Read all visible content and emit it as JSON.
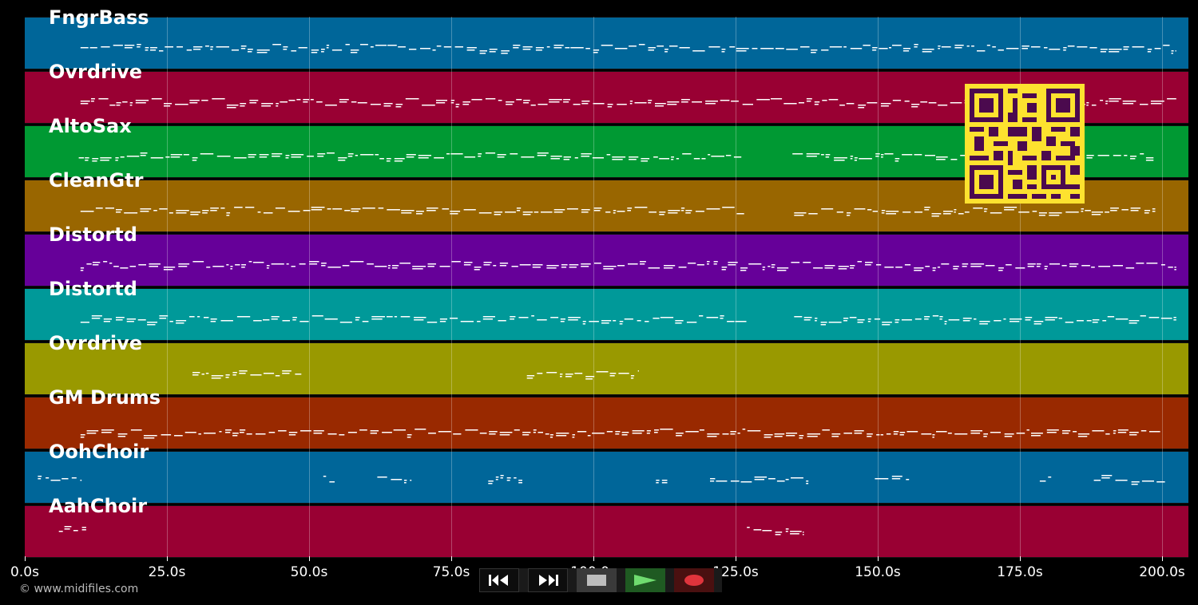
{
  "colors": {
    "background": "#000000",
    "note": "#ffffff",
    "qr_fg": "#4b0a4e",
    "qr_bg": "#fde22f"
  },
  "tracks": [
    {
      "name": "FngrBass",
      "color": "#006699"
    },
    {
      "name": "Ovrdrive",
      "color": "#990033"
    },
    {
      "name": "AltoSax",
      "color": "#009933"
    },
    {
      "name": "CleanGtr",
      "color": "#996600"
    },
    {
      "name": "Distortd",
      "color": "#660099"
    },
    {
      "name": "Distortd",
      "color": "#009999"
    },
    {
      "name": "Ovrdrive",
      "color": "#999900"
    },
    {
      "name": "GM Drums",
      "color": "#992900"
    },
    {
      "name": "OohChoir",
      "color": "#006699"
    },
    {
      "name": "AahChoir",
      "color": "#990033"
    }
  ],
  "timeline": {
    "range_seconds": [
      0,
      204.5
    ],
    "ticks": [
      {
        "value": 0,
        "label": "0.0s"
      },
      {
        "value": 25,
        "label": "25.0s"
      },
      {
        "value": 50,
        "label": "50.0s"
      },
      {
        "value": 75,
        "label": "75.0s"
      },
      {
        "value": 100,
        "label": "100.0s"
      },
      {
        "value": 125,
        "label": "125.0s"
      },
      {
        "value": 150,
        "label": "150.0s"
      },
      {
        "value": 175,
        "label": "175.0s"
      },
      {
        "value": 200,
        "label": "200.0s"
      }
    ]
  },
  "note_segments": [
    {
      "track": 0,
      "start": 9.8,
      "end": 202.5
    },
    {
      "track": 1,
      "start": 9.8,
      "end": 202.5
    },
    {
      "track": 2,
      "start": 9.5,
      "end": 126.0
    },
    {
      "track": 2,
      "start": 135.0,
      "end": 198.5
    },
    {
      "track": 3,
      "start": 9.8,
      "end": 126.5
    },
    {
      "track": 3,
      "start": 135.3,
      "end": 198.8
    },
    {
      "track": 4,
      "start": 9.8,
      "end": 202.5
    },
    {
      "track": 5,
      "start": 9.8,
      "end": 127.0
    },
    {
      "track": 5,
      "start": 135.3,
      "end": 202.5
    },
    {
      "track": 6,
      "start": 29.5,
      "end": 49.0
    },
    {
      "track": 6,
      "start": 88.3,
      "end": 108.0
    },
    {
      "track": 7,
      "start": 9.8,
      "end": 199.8
    },
    {
      "track": 8,
      "start": 2.3,
      "end": 10.0
    },
    {
      "track": 8,
      "start": 52.5,
      "end": 54.5
    },
    {
      "track": 8,
      "start": 62.0,
      "end": 68.0
    },
    {
      "track": 8,
      "start": 81.5,
      "end": 87.5
    },
    {
      "track": 8,
      "start": 111.0,
      "end": 113.0
    },
    {
      "track": 8,
      "start": 120.5,
      "end": 137.8
    },
    {
      "track": 8,
      "start": 149.5,
      "end": 155.5
    },
    {
      "track": 8,
      "start": 178.5,
      "end": 180.5
    },
    {
      "track": 8,
      "start": 188.0,
      "end": 200.5
    },
    {
      "track": 9,
      "start": 6.0,
      "end": 10.8
    },
    {
      "track": 9,
      "start": 127.0,
      "end": 137.0
    }
  ],
  "footer": {
    "copyright": "© www.midifiles.com"
  },
  "controls": {
    "rewind_icon": "rewind-icon",
    "fast_forward_icon": "fast-forward-icon",
    "stop_icon": "stop-icon",
    "play_icon": "play-icon",
    "record_icon": "record-icon"
  }
}
